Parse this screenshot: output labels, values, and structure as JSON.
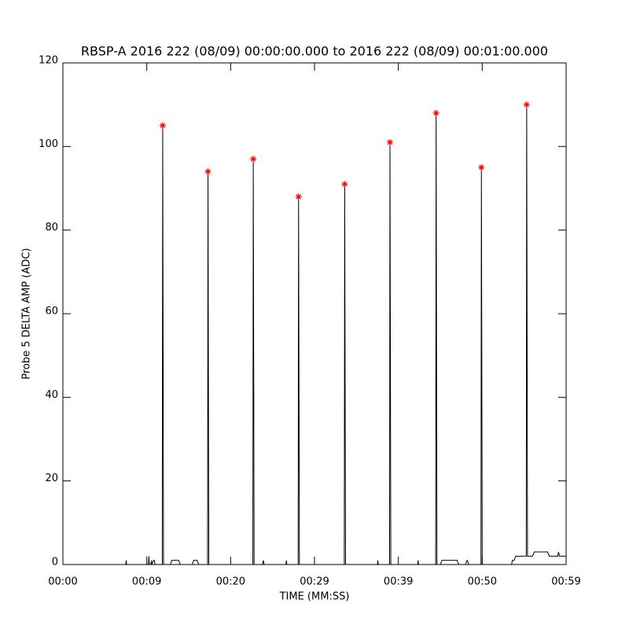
{
  "chart_data": {
    "type": "line",
    "title": "RBSP-A 2016 222 (08/09) 00:00:00.000 to 2016 222 (08/09) 00:01:00.000",
    "xlabel": "TIME (MM:SS)",
    "ylabel": "Probe 5 DELTA AMP (ADC)",
    "xlim": [
      0,
      60
    ],
    "ylim": [
      0,
      120
    ],
    "xticks": [
      {
        "value": 0,
        "label": "00:00"
      },
      {
        "value": 10,
        "label": "00:09"
      },
      {
        "value": 20,
        "label": "00:20"
      },
      {
        "value": 30,
        "label": "00:29"
      },
      {
        "value": 40,
        "label": "00:39"
      },
      {
        "value": 50,
        "label": "00:50"
      },
      {
        "value": 60,
        "label": "00:59"
      }
    ],
    "yticks": [
      0,
      20,
      40,
      60,
      80,
      100,
      120
    ],
    "series": [
      {
        "color": "#000000",
        "marker": "none",
        "x": [
          0,
          7.5,
          7.55,
          7.6,
          10.2,
          10.25,
          10.3,
          10.5,
          10.55,
          10.6,
          10.8,
          10.9,
          11,
          11.85,
          11.9,
          12.0,
          12.8,
          13.0,
          13.8,
          14.0,
          15.4,
          15.6,
          16.0,
          16.2,
          17.25,
          17.3,
          17.4,
          22.65,
          22.7,
          22.8,
          23.8,
          23.9,
          24.0,
          26.6,
          26.65,
          26.7,
          28.05,
          28.1,
          28.2,
          33.55,
          33.6,
          33.7,
          37.5,
          37.55,
          37.6,
          38.95,
          39.0,
          39.1,
          42.3,
          42.35,
          42.4,
          44.45,
          44.5,
          44.6,
          45,
          45.2,
          47,
          47.2,
          48,
          48.2,
          48.4,
          49.85,
          49.9,
          50.0,
          53.5,
          53.6,
          53.8,
          54,
          54.7,
          55.25,
          55.3,
          55.4,
          56,
          56.2,
          57.8,
          58,
          59,
          59.1,
          59.2,
          60
        ],
        "values": [
          0,
          0,
          1,
          0,
          0,
          2,
          0,
          0,
          1,
          0,
          1,
          1,
          0,
          0,
          105,
          0,
          0,
          1,
          1,
          0,
          0,
          1,
          1,
          0,
          0,
          94,
          0,
          0,
          97,
          0,
          0,
          1,
          0,
          0,
          1,
          0,
          0,
          88,
          0,
          0,
          91,
          0,
          0,
          1,
          0,
          0,
          101,
          0,
          0,
          1,
          0,
          0,
          108,
          0,
          0,
          1,
          1,
          0,
          0,
          1,
          0,
          0,
          95,
          0,
          0,
          1,
          1,
          2,
          2,
          2,
          110,
          2,
          2,
          3,
          3,
          2,
          2,
          3,
          2,
          2
        ]
      },
      {
        "color": "#ff0000",
        "marker": "asterisk",
        "x": [
          11.9,
          17.3,
          22.7,
          28.1,
          33.6,
          39.0,
          44.5,
          49.9,
          55.3
        ],
        "values": [
          105,
          94,
          97,
          88,
          91,
          101,
          108,
          95,
          110
        ]
      }
    ]
  }
}
